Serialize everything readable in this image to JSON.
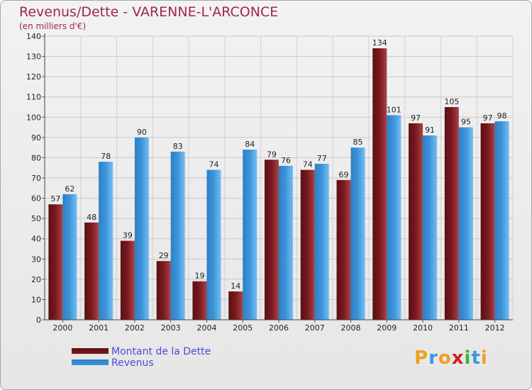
{
  "title": "Revenus/Dette - VARENNE-L'ARCONCE",
  "subtitle": "(en milliers d'€)",
  "colors": {
    "dette": "#7b1a1e",
    "revenus": "#3c96dc",
    "axis_text": "#222222",
    "title": "#a0284a",
    "legend_text": "#4b4bd8"
  },
  "chart_data": {
    "type": "bar",
    "title": "Revenus/Dette - VARENNE-L'ARCONCE",
    "ylabel": "(en milliers d'€)",
    "xlabel": "",
    "ylim": [
      0,
      140
    ],
    "yticks": [
      0,
      10,
      20,
      30,
      40,
      50,
      60,
      70,
      80,
      90,
      100,
      110,
      120,
      130,
      140
    ],
    "grid": true,
    "categories": [
      "2000",
      "2001",
      "2002",
      "2003",
      "2004",
      "2005",
      "2006",
      "2007",
      "2008",
      "2009",
      "2010",
      "2011",
      "2012"
    ],
    "series": [
      {
        "name": "Montant de la Dette",
        "values": [
          57,
          48,
          39,
          29,
          19,
          14,
          79,
          74,
          69,
          134,
          97,
          105,
          97
        ]
      },
      {
        "name": "Revenus",
        "values": [
          62,
          78,
          90,
          83,
          74,
          84,
          76,
          77,
          85,
          101,
          91,
          95,
          98
        ]
      }
    ]
  },
  "legend": {
    "items": [
      "Montant de la Dette",
      "Revenus"
    ]
  },
  "logo": {
    "letters": [
      "P",
      "r",
      "o",
      "x",
      "i",
      "t",
      "i"
    ],
    "colors": [
      "#f0a020",
      "#3c96dc",
      "#f0a020",
      "#d02020",
      "#3cb43c",
      "#3c96dc",
      "#f0a020"
    ]
  }
}
